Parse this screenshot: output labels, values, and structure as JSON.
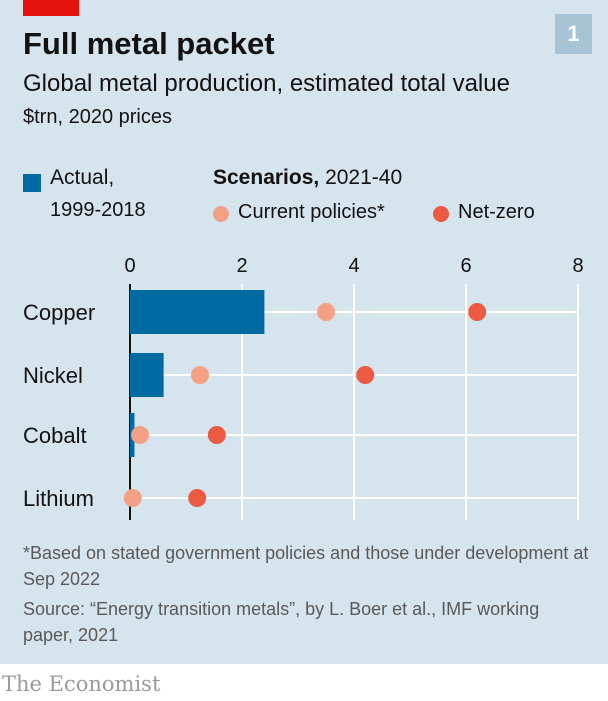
{
  "header": {
    "badge": "1",
    "title": "Full metal packet",
    "subtitle": "Global metal production, estimated total value",
    "unit": "$trn, 2020 prices"
  },
  "legend": {
    "actual_line1": "Actual,",
    "actual_line2": "1999-2018",
    "scenarios_bold": "Scenarios,",
    "scenarios_rest": " 2021-40",
    "current": "Current policies*",
    "netzero": "Net-zero"
  },
  "colors": {
    "actual": "#006ba2",
    "current": "#f4a084",
    "netzero": "#eb5a41",
    "panel": "#d6e4ee",
    "accent": "#e3120b"
  },
  "chart_data": {
    "type": "bar",
    "orientation": "horizontal",
    "categories": [
      "Copper",
      "Nickel",
      "Cobalt",
      "Lithium"
    ],
    "series": [
      {
        "name": "Actual, 1999-2018",
        "mark": "bar",
        "values": [
          2.4,
          0.6,
          0.08,
          0.0
        ]
      },
      {
        "name": "Current policies*",
        "mark": "dot",
        "values": [
          3.5,
          1.25,
          0.18,
          0.05
        ]
      },
      {
        "name": "Net-zero",
        "mark": "dot",
        "values": [
          6.2,
          4.2,
          1.55,
          1.2
        ]
      }
    ],
    "xlim": [
      0,
      8
    ],
    "xticks": [
      0,
      2,
      4,
      6,
      8
    ],
    "grid": true,
    "legend_position": "top"
  },
  "notes": {
    "footnote": "*Based on stated government policies and those under development at Sep 2022",
    "source": "Source: “Energy transition metals”, by L. Boer et al., IMF working paper, 2021"
  },
  "brand": "The Economist"
}
